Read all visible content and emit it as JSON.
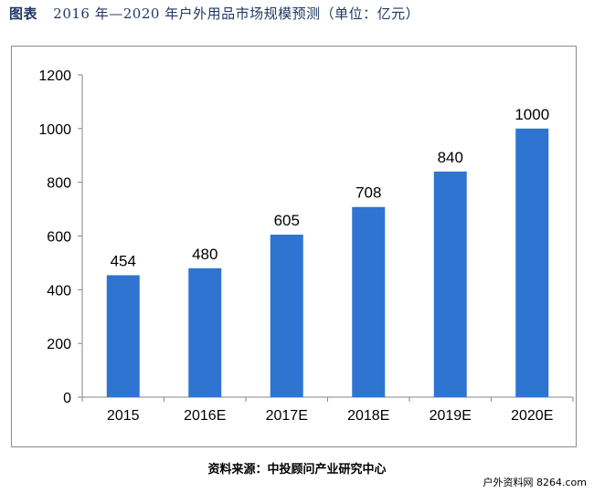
{
  "caption": {
    "label": "图表",
    "text": "2016 年—2020 年户外用品市场规模预测（单位：亿元）"
  },
  "source": "资料来源：中投顾问产业研究中心",
  "watermark": "户外资料网 8264.com",
  "chart_data": {
    "type": "bar",
    "categories": [
      "2015",
      "2016E",
      "2017E",
      "2018E",
      "2019E",
      "2020E"
    ],
    "values": [
      454,
      480,
      605,
      708,
      840,
      1000
    ],
    "data_labels": [
      "454",
      "480",
      "605",
      "708",
      "840",
      "1000"
    ],
    "ylim": [
      0,
      1200
    ],
    "yticks": [
      0,
      200,
      400,
      600,
      800,
      1000,
      1200
    ],
    "ytick_labels": [
      "0",
      "200",
      "400",
      "600",
      "800",
      "1000",
      "1200"
    ],
    "grid": false,
    "legend": "none",
    "bar_color": "#2f74d0",
    "axis_color": "#868686",
    "text_color": "#000000"
  }
}
